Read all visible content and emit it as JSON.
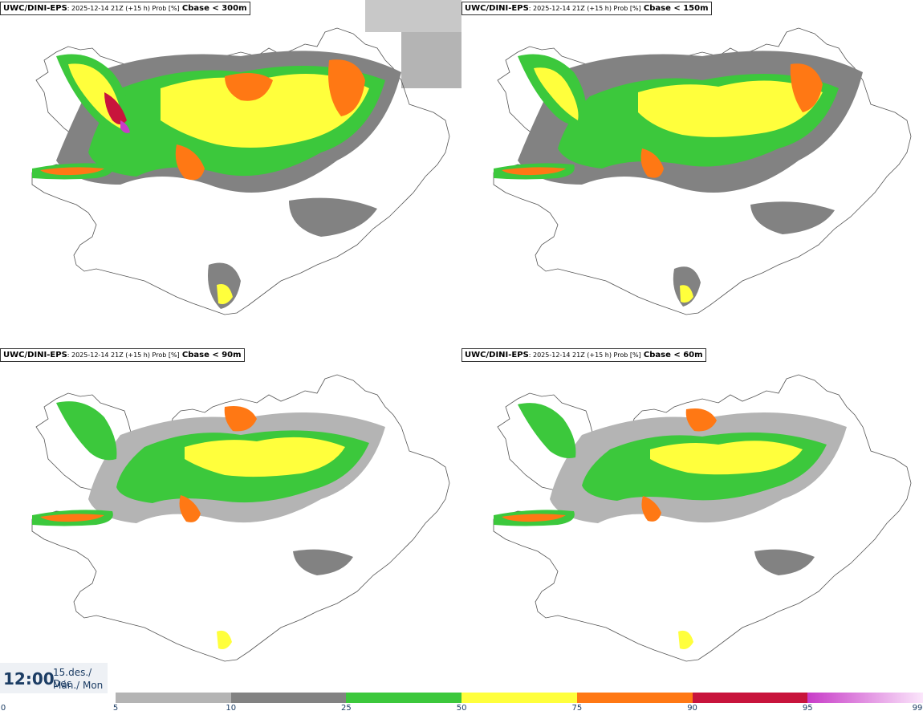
{
  "panels": [
    {
      "model": "UWC/DINI-EPS",
      "meta": ": 2025-12-14 21Z (+15 h) Prob [%]",
      "variable": "Cbase < 300m"
    },
    {
      "model": "UWC/DINI-EPS",
      "meta": ": 2025-12-14 21Z (+15 h) Prob [%]",
      "variable": "Cbase < 150m"
    },
    {
      "model": "UWC/DINI-EPS",
      "meta": ": 2025-12-14 21Z (+15 h) Prob [%]",
      "variable": "Cbase < 90m"
    },
    {
      "model": "UWC/DINI-EPS",
      "meta": ": 2025-12-14 21Z (+15 h) Prob [%]",
      "variable": "Cbase < 60m"
    }
  ],
  "valid_time": {
    "time": "12:00",
    "date": "15.des./ Dec",
    "weekday": "Mán./ Mon"
  },
  "colorbar": {
    "ticks": [
      "0",
      "5",
      "10",
      "25",
      "50",
      "75",
      "90",
      "95",
      "99"
    ],
    "bins": [
      {
        "from": 5,
        "to": 10,
        "color": "#b4b4b4"
      },
      {
        "from": 10,
        "to": 25,
        "color": "#828282"
      },
      {
        "from": 25,
        "to": 50,
        "color": "#3cc83c"
      },
      {
        "from": 50,
        "to": 75,
        "color": "#ffff3c"
      },
      {
        "from": 75,
        "to": 90,
        "color": "#ff7814"
      },
      {
        "from": 90,
        "to": 95,
        "color": "#c8143c"
      },
      {
        "from": 95,
        "to": 99,
        "color": "#c83cc8"
      }
    ]
  }
}
